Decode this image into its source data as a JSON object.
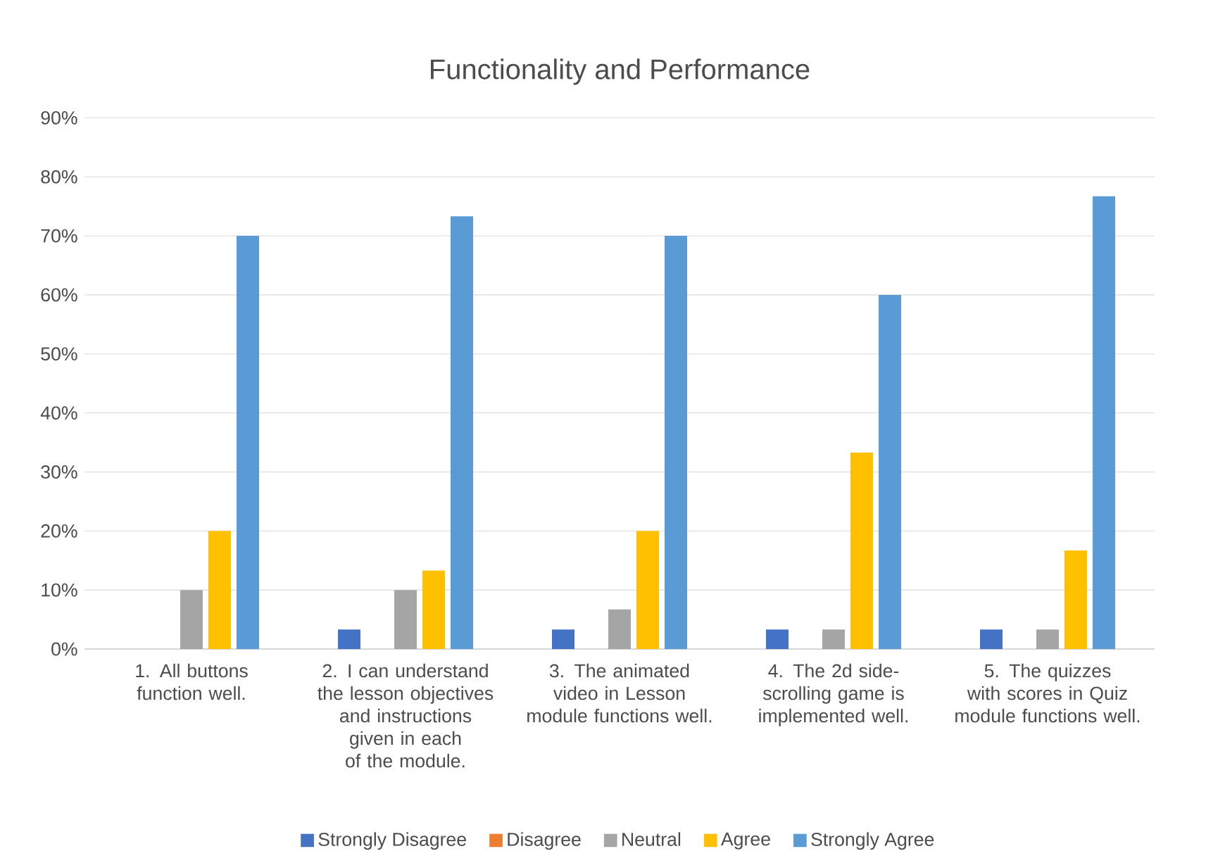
{
  "chart_data": {
    "type": "bar",
    "title": "Functionality and Performance",
    "categories": [
      "1. All buttons function well.",
      "2. I can understand the lesson objectives and instructions given in each of the module.",
      "3. The animated video in Lesson module functions well.",
      "4. The 2d side-scrolling game is implemented well.",
      "5. The quizzes with scores in Quiz module functions well."
    ],
    "series": [
      {
        "name": "Strongly Disagree",
        "color": "#4472c4",
        "values": [
          0,
          3.3,
          3.3,
          3.3,
          3.3
        ]
      },
      {
        "name": "Disagree",
        "color": "#ed7d31",
        "values": [
          0,
          0,
          0,
          0,
          0
        ]
      },
      {
        "name": "Neutral",
        "color": "#a5a5a5",
        "values": [
          10,
          10,
          6.7,
          3.3,
          3.3
        ]
      },
      {
        "name": "Agree",
        "color": "#ffc000",
        "values": [
          20,
          13.3,
          20,
          33.3,
          16.7
        ]
      },
      {
        "name": "Strongly Agree",
        "color": "#5b9bd5",
        "values": [
          70,
          73.3,
          70,
          60,
          76.7
        ]
      }
    ],
    "ylim": [
      0,
      90
    ],
    "yticks": [
      {
        "value": 0,
        "label": "0%"
      },
      {
        "value": 10,
        "label": "10%"
      },
      {
        "value": 20,
        "label": "20%"
      },
      {
        "value": 30,
        "label": "30%"
      },
      {
        "value": 40,
        "label": "40%"
      },
      {
        "value": 50,
        "label": "50%"
      },
      {
        "value": 60,
        "label": "60%"
      },
      {
        "value": 70,
        "label": "70%"
      },
      {
        "value": 80,
        "label": "80%"
      },
      {
        "value": 90,
        "label": "90%"
      }
    ],
    "grid": "y",
    "legend": "bottom"
  }
}
